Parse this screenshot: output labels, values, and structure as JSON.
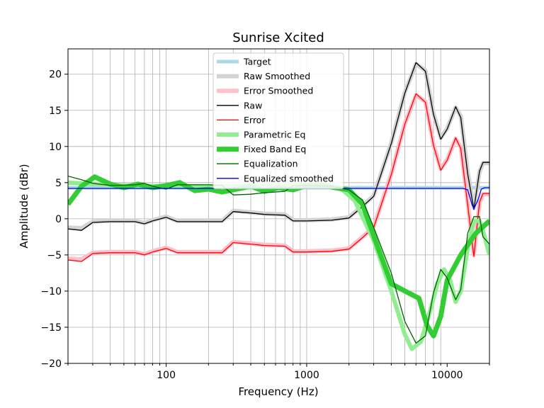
{
  "chart_data": {
    "type": "line",
    "title": "Sunrise Xcited",
    "xlabel": "Frequency (Hz)",
    "ylabel": "Amplitude (dBr)",
    "xscale": "log",
    "xlim": [
      20,
      20000
    ],
    "ylim": [
      -20,
      23.5
    ],
    "grid": true,
    "legend_position": "top-center",
    "x_ticks": [
      {
        "value": 100,
        "label": "100"
      },
      {
        "value": 1000,
        "label": "1000"
      },
      {
        "value": 10000,
        "label": "10000"
      }
    ],
    "y_ticks": [
      {
        "value": -20,
        "label": "−20"
      },
      {
        "value": -15,
        "label": "−15"
      },
      {
        "value": -10,
        "label": "−10"
      },
      {
        "value": -5,
        "label": "−5"
      },
      {
        "value": 0,
        "label": "0"
      },
      {
        "value": 5,
        "label": "5"
      },
      {
        "value": 10,
        "label": "10"
      },
      {
        "value": 15,
        "label": "15"
      },
      {
        "value": 20,
        "label": "20"
      }
    ],
    "series": [
      {
        "name": "Target",
        "color": "#add8e6",
        "width": 5,
        "points": [
          [
            20,
            4.3
          ],
          [
            20000,
            4.3
          ]
        ]
      },
      {
        "name": "Raw Smoothed",
        "color": "#d3d3d3",
        "width": 6,
        "points": [
          [
            20,
            -1.2
          ],
          [
            25,
            -1.3
          ],
          [
            30,
            -0.4
          ],
          [
            40,
            -0.3
          ],
          [
            60,
            -0.3
          ],
          [
            70,
            -0.6
          ],
          [
            80,
            -0.2
          ],
          [
            100,
            0.3
          ],
          [
            120,
            -0.3
          ],
          [
            200,
            -0.3
          ],
          [
            250,
            -0.3
          ],
          [
            300,
            1.1
          ],
          [
            400,
            0.9
          ],
          [
            500,
            0.7
          ],
          [
            700,
            0.6
          ],
          [
            800,
            -0.2
          ],
          [
            1000,
            -0.2
          ],
          [
            1500,
            -0.1
          ],
          [
            2000,
            0.2
          ],
          [
            2500,
            1.8
          ],
          [
            3000,
            3.2
          ],
          [
            4000,
            10.5
          ],
          [
            5000,
            17.5
          ],
          [
            6000,
            21.4
          ],
          [
            7000,
            20.5
          ],
          [
            8000,
            14.5
          ],
          [
            9000,
            11.2
          ],
          [
            10000,
            12.5
          ],
          [
            11500,
            15.4
          ],
          [
            12500,
            14.2
          ],
          [
            14000,
            6.5
          ],
          [
            15500,
            1.5
          ],
          [
            17000,
            6.5
          ],
          [
            18000,
            7.7
          ],
          [
            20000,
            7.7
          ]
        ]
      },
      {
        "name": "Error Smoothed",
        "color": "#ffc0cb",
        "width": 6,
        "points": [
          [
            20,
            -5.5
          ],
          [
            25,
            -5.6
          ],
          [
            30,
            -4.7
          ],
          [
            40,
            -4.6
          ],
          [
            60,
            -4.6
          ],
          [
            70,
            -4.9
          ],
          [
            80,
            -4.5
          ],
          [
            100,
            -4.0
          ],
          [
            120,
            -4.6
          ],
          [
            200,
            -4.6
          ],
          [
            250,
            -4.6
          ],
          [
            300,
            -3.2
          ],
          [
            400,
            -3.4
          ],
          [
            500,
            -3.6
          ],
          [
            700,
            -3.7
          ],
          [
            800,
            -4.5
          ],
          [
            1000,
            -4.5
          ],
          [
            1500,
            -4.4
          ],
          [
            2000,
            -4.1
          ],
          [
            2500,
            -2.5
          ],
          [
            3000,
            -1.1
          ],
          [
            4000,
            6.2
          ],
          [
            5000,
            13.2
          ],
          [
            6000,
            17.1
          ],
          [
            7000,
            16.2
          ],
          [
            8000,
            10.2
          ],
          [
            9000,
            6.9
          ],
          [
            10000,
            8.2
          ],
          [
            11500,
            11.1
          ],
          [
            12500,
            9.9
          ],
          [
            14000,
            2.2
          ],
          [
            15500,
            -5.0
          ],
          [
            17000,
            2.2
          ],
          [
            18000,
            3.4
          ],
          [
            20000,
            3.4
          ]
        ]
      },
      {
        "name": "Raw",
        "color": "#000000",
        "width": 1.3,
        "points": [
          [
            20,
            -1.4
          ],
          [
            25,
            -1.6
          ],
          [
            30,
            -0.5
          ],
          [
            40,
            -0.4
          ],
          [
            60,
            -0.4
          ],
          [
            70,
            -0.7
          ],
          [
            80,
            -0.3
          ],
          [
            100,
            0.2
          ],
          [
            120,
            -0.4
          ],
          [
            200,
            -0.4
          ],
          [
            250,
            -0.4
          ],
          [
            300,
            1.0
          ],
          [
            400,
            0.8
          ],
          [
            500,
            0.6
          ],
          [
            700,
            0.5
          ],
          [
            800,
            -0.3
          ],
          [
            1000,
            -0.3
          ],
          [
            1500,
            -0.2
          ],
          [
            2000,
            0.1
          ],
          [
            2500,
            1.7
          ],
          [
            3000,
            3.1
          ],
          [
            4000,
            10.4
          ],
          [
            5000,
            17.4
          ],
          [
            6000,
            21.6
          ],
          [
            7000,
            20.4
          ],
          [
            8000,
            14.4
          ],
          [
            9000,
            11.0
          ],
          [
            10000,
            12.4
          ],
          [
            11500,
            15.5
          ],
          [
            12500,
            14.0
          ],
          [
            14000,
            6.2
          ],
          [
            15500,
            1.3
          ],
          [
            17000,
            6.6
          ],
          [
            18000,
            7.8
          ],
          [
            20000,
            7.8
          ]
        ]
      },
      {
        "name": "Error",
        "color": "#ff0000",
        "width": 1.3,
        "points": [
          [
            20,
            -5.7
          ],
          [
            25,
            -5.9
          ],
          [
            30,
            -4.8
          ],
          [
            40,
            -4.7
          ],
          [
            60,
            -4.7
          ],
          [
            70,
            -5.0
          ],
          [
            80,
            -4.6
          ],
          [
            100,
            -4.1
          ],
          [
            120,
            -4.7
          ],
          [
            200,
            -4.7
          ],
          [
            250,
            -4.7
          ],
          [
            300,
            -3.3
          ],
          [
            400,
            -3.5
          ],
          [
            500,
            -3.7
          ],
          [
            700,
            -3.8
          ],
          [
            800,
            -4.6
          ],
          [
            1000,
            -4.6
          ],
          [
            1500,
            -4.5
          ],
          [
            2000,
            -4.2
          ],
          [
            2500,
            -2.6
          ],
          [
            3000,
            -1.2
          ],
          [
            4000,
            6.1
          ],
          [
            5000,
            13.1
          ],
          [
            6000,
            17.3
          ],
          [
            7000,
            16.1
          ],
          [
            8000,
            10.1
          ],
          [
            9000,
            6.7
          ],
          [
            10000,
            8.1
          ],
          [
            11500,
            11.2
          ],
          [
            12500,
            9.7
          ],
          [
            14000,
            1.9
          ],
          [
            15500,
            -5.2
          ],
          [
            17000,
            2.3
          ],
          [
            18000,
            3.5
          ],
          [
            20000,
            3.5
          ]
        ]
      },
      {
        "name": "Parametric Eq",
        "color": "#90ee90",
        "width": 6,
        "points": [
          [
            20,
            5.0
          ],
          [
            30,
            4.8
          ],
          [
            50,
            4.6
          ],
          [
            100,
            4.5
          ],
          [
            200,
            4.5
          ],
          [
            500,
            4.5
          ],
          [
            1000,
            4.7
          ],
          [
            1500,
            4.5
          ],
          [
            1800,
            4.0
          ],
          [
            2200,
            2.5
          ],
          [
            3000,
            -3.0
          ],
          [
            4000,
            -10.0
          ],
          [
            5000,
            -16.0
          ],
          [
            5600,
            -18.0
          ],
          [
            6500,
            -17.0
          ],
          [
            7500,
            -13.0
          ],
          [
            8500,
            -9.0
          ],
          [
            9500,
            -7.0
          ],
          [
            10500,
            -8.5
          ],
          [
            11500,
            -11.5
          ],
          [
            12500,
            -10.0
          ],
          [
            14000,
            -4.0
          ],
          [
            15500,
            -0.3
          ],
          [
            17000,
            -0.3
          ],
          [
            18500,
            -2.5
          ],
          [
            20000,
            -5.0
          ]
        ]
      },
      {
        "name": "Fixed Band Eq",
        "color": "#32cd32",
        "width": 7,
        "points": [
          [
            20,
            2.0
          ],
          [
            25,
            4.5
          ],
          [
            31,
            5.8
          ],
          [
            40,
            4.8
          ],
          [
            50,
            4.3
          ],
          [
            63,
            4.8
          ],
          [
            80,
            4.3
          ],
          [
            100,
            4.6
          ],
          [
            125,
            5.0
          ],
          [
            160,
            3.9
          ],
          [
            200,
            4.1
          ],
          [
            250,
            3.7
          ],
          [
            300,
            4.0
          ],
          [
            400,
            4.5
          ],
          [
            500,
            3.8
          ],
          [
            630,
            4.3
          ],
          [
            800,
            4.0
          ],
          [
            1000,
            4.6
          ],
          [
            1300,
            4.6
          ],
          [
            1600,
            4.3
          ],
          [
            2000,
            4.0
          ],
          [
            2500,
            2.0
          ],
          [
            3150,
            -3.5
          ],
          [
            4000,
            -9.0
          ],
          [
            5000,
            -10.0
          ],
          [
            6300,
            -11.0
          ],
          [
            7200,
            -14.8
          ],
          [
            8000,
            -16.2
          ],
          [
            9000,
            -13.5
          ],
          [
            10000,
            -8.5
          ],
          [
            12500,
            -5.0
          ],
          [
            16000,
            -2.0
          ],
          [
            20000,
            -0.3
          ]
        ]
      },
      {
        "name": "Equalization",
        "color": "#006400",
        "width": 1.3,
        "points": [
          [
            20,
            5.9
          ],
          [
            25,
            5.4
          ],
          [
            30,
            4.9
          ],
          [
            40,
            4.6
          ],
          [
            60,
            4.7
          ],
          [
            70,
            4.9
          ],
          [
            80,
            4.5
          ],
          [
            100,
            4.1
          ],
          [
            120,
            4.7
          ],
          [
            200,
            4.7
          ],
          [
            250,
            4.6
          ],
          [
            300,
            3.3
          ],
          [
            400,
            3.4
          ],
          [
            500,
            3.6
          ],
          [
            700,
            3.8
          ],
          [
            800,
            4.6
          ],
          [
            1000,
            4.6
          ],
          [
            1500,
            4.5
          ],
          [
            2000,
            4.0
          ],
          [
            2500,
            2.6
          ],
          [
            3000,
            -1.2
          ],
          [
            4000,
            -7.5
          ],
          [
            5000,
            -14.2
          ],
          [
            6000,
            -17.2
          ],
          [
            7000,
            -16.2
          ],
          [
            8000,
            -10.2
          ],
          [
            9000,
            -7.0
          ],
          [
            10000,
            -8.2
          ],
          [
            11500,
            -11.2
          ],
          [
            12500,
            -9.8
          ],
          [
            14000,
            -2.0
          ],
          [
            15500,
            0.3
          ],
          [
            17000,
            0.3
          ],
          [
            18000,
            -2.5
          ],
          [
            20000,
            -3.5
          ]
        ]
      },
      {
        "name": "Equalized smoothed",
        "color": "#0000ff",
        "width": 1.3,
        "points": [
          [
            20,
            4.2
          ],
          [
            2000,
            4.2
          ],
          [
            13000,
            4.2
          ],
          [
            14000,
            4.0
          ],
          [
            15000,
            2.0
          ],
          [
            15500,
            1.4
          ],
          [
            16500,
            2.5
          ],
          [
            17500,
            4.1
          ],
          [
            18500,
            4.3
          ],
          [
            20000,
            4.3
          ]
        ]
      }
    ]
  }
}
